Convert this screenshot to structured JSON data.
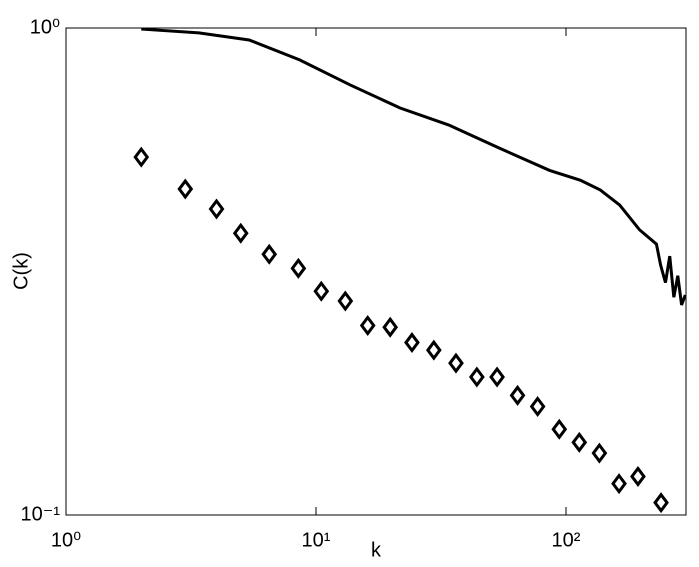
{
  "chart_data": {
    "type": "line",
    "xlabel": "k",
    "ylabel": "C(k)",
    "xscale": "log",
    "yscale": "log",
    "xlim": [
      1,
      302
    ],
    "ylim": [
      0.1,
      1
    ],
    "xticks": [
      {
        "value": 1,
        "label": "10⁰"
      },
      {
        "value": 10,
        "label": "10¹"
      },
      {
        "value": 100,
        "label": "10²"
      }
    ],
    "yticks": [
      {
        "value": 0.1,
        "label": "10⁻¹"
      },
      {
        "value": 1,
        "label": "10⁰"
      }
    ],
    "series": [
      {
        "type": "line",
        "color": "#000000",
        "x": [
          2,
          3.4,
          5.4,
          8.6,
          13.7,
          21.7,
          34,
          54,
          86,
          114,
          137,
          164,
          197,
          230,
          239,
          250,
          260,
          270,
          280,
          290,
          300
        ],
        "values": [
          0.995,
          0.977,
          0.945,
          0.86,
          0.764,
          0.685,
          0.632,
          0.567,
          0.51,
          0.487,
          0.465,
          0.433,
          0.385,
          0.36,
          0.326,
          0.3,
          0.34,
          0.28,
          0.31,
          0.27,
          0.283
        ]
      },
      {
        "type": "scatter",
        "marker": "diamond",
        "color": "#000000",
        "x": [
          2,
          3,
          4,
          5,
          6.5,
          8.5,
          10.5,
          13.1,
          16.1,
          19.8,
          24.2,
          29.6,
          36.3,
          44,
          53,
          64,
          77,
          94,
          113,
          136,
          163,
          194,
          240
        ],
        "values": [
          0.543,
          0.467,
          0.425,
          0.379,
          0.343,
          0.321,
          0.288,
          0.275,
          0.245,
          0.243,
          0.226,
          0.218,
          0.205,
          0.192,
          0.192,
          0.176,
          0.167,
          0.15,
          0.141,
          0.134,
          0.116,
          0.12,
          0.106
        ]
      }
    ]
  }
}
